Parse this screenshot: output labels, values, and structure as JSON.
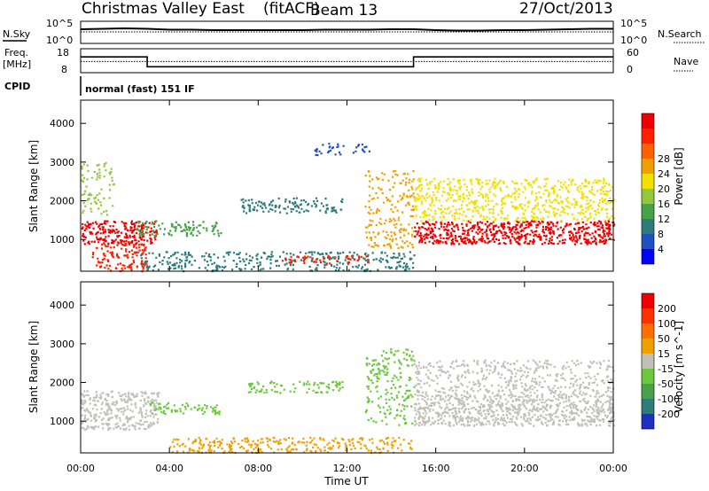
{
  "header": {
    "station": "Christmas Valley East",
    "method": "(fitACF)",
    "beam": "Beam 13",
    "date": "27/Oct/2013"
  },
  "top_panels": {
    "nsky_label": "N.Sky",
    "nsearch_label": "N.Search",
    "freq_label_1": "Freq.",
    "freq_label_2": "[MHz]",
    "nave_label": "Nave",
    "cpid_label": "CPID",
    "cpid_value": "normal (fast) 151 IF",
    "noise_ticks": [
      "10^5",
      "10^0"
    ],
    "freq_ticks": [
      "18",
      "8"
    ],
    "nave_ticks": [
      "60",
      "0"
    ],
    "noise_sky": {
      "x": [
        0,
        1,
        2,
        3,
        4,
        5,
        6,
        7,
        8,
        9,
        10,
        11,
        12,
        13,
        14,
        15,
        16,
        17,
        18,
        19,
        20,
        21,
        22,
        23,
        24
      ],
      "level": [
        3.2,
        3.3,
        3.4,
        3.3,
        3.1,
        3.1,
        3.0,
        3.0,
        3.0,
        3.0,
        3.0,
        3.1,
        3.1,
        3.1,
        3.2,
        3.2,
        3.0,
        2.9,
        2.9,
        3.0,
        3.0,
        3.1,
        3.2,
        3.3,
        3.3
      ]
    },
    "noise_search": {
      "x": [
        0,
        24
      ],
      "level": [
        2.6,
        2.6
      ]
    },
    "frequency": {
      "x": [
        0,
        3,
        3,
        15,
        15,
        24
      ],
      "mhz": [
        14.6,
        14.6,
        10.5,
        10.5,
        14.6,
        14.6
      ]
    },
    "nave": {
      "x": [
        0,
        24
      ],
      "value": [
        28,
        28
      ]
    }
  },
  "chart_data": [
    {
      "type": "heatmap",
      "name": "power",
      "ylabel": "Slant Range [km]",
      "yticks": [
        "1000",
        "2000",
        "3000",
        "4000"
      ],
      "ylim": [
        180,
        4600
      ],
      "xlim": [
        0,
        24
      ],
      "colorbar_label": "Power [dB]",
      "colorbar_ticks": [
        "4",
        "8",
        "12",
        "16",
        "20",
        "24",
        "28"
      ],
      "colorbar_colors": [
        "#0000ff",
        "#2050c0",
        "#2e7b7b",
        "#48a048",
        "#94c83c",
        "#f2e000",
        "#f0a000",
        "#ff6000",
        "#ff2000",
        "#ee0000"
      ],
      "features": [
        {
          "t": [
            0.0,
            3.4
          ],
          "r": [
            900,
            1500
          ],
          "class": 9,
          "density": 0.9
        },
        {
          "t": [
            0.5,
            3.0
          ],
          "r": [
            200,
            900
          ],
          "class": 8,
          "density": 0.6
        },
        {
          "t": [
            0.0,
            1.5
          ],
          "r": [
            1600,
            3000
          ],
          "class": 4,
          "density": 0.3
        },
        {
          "t": [
            2.5,
            6.3
          ],
          "r": [
            1100,
            1500
          ],
          "class": 3,
          "density": 0.55
        },
        {
          "t": [
            2.5,
            15.0
          ],
          "r": [
            200,
            700
          ],
          "class": 2,
          "density": 0.45
        },
        {
          "t": [
            7.2,
            11.8
          ],
          "r": [
            1700,
            2100
          ],
          "class": 2,
          "density": 0.55
        },
        {
          "t": [
            9.0,
            13.0
          ],
          "r": [
            400,
            600
          ],
          "class": 8,
          "density": 0.5
        },
        {
          "t": [
            12.8,
            15.0
          ],
          "r": [
            800,
            2800
          ],
          "class": 6,
          "density": 0.35
        },
        {
          "t": [
            15.0,
            24.0
          ],
          "r": [
            900,
            1500
          ],
          "class": 9,
          "density": 0.95
        },
        {
          "t": [
            15.0,
            24.0
          ],
          "r": [
            1500,
            2600
          ],
          "class": 5,
          "density": 0.55
        },
        {
          "t": [
            10.5,
            13.0
          ],
          "r": [
            3200,
            3500
          ],
          "class": 1,
          "density": 0.4
        }
      ]
    },
    {
      "type": "heatmap",
      "name": "velocity",
      "ylabel": "Slant Range [km]",
      "xlabel": "Time UT",
      "xticks": [
        "00:00",
        "04:00",
        "08:00",
        "12:00",
        "16:00",
        "20:00",
        "00:00"
      ],
      "yticks": [
        "1000",
        "2000",
        "3000",
        "4000"
      ],
      "ylim": [
        180,
        4600
      ],
      "xlim": [
        0,
        24
      ],
      "colorbar_label": "Velocity [m s^-1]",
      "colorbar_ticks": [
        "200",
        "100",
        "50",
        "15",
        "-15",
        "-50",
        "-100",
        "-200"
      ],
      "colorbar_colors": [
        "#2030c0",
        "#2e7b7b",
        "#48a048",
        "#6cc83c",
        "#c0c0b8",
        "#f0a000",
        "#ff7000",
        "#ff3000",
        "#ee0000"
      ],
      "features": [
        {
          "t": [
            0.0,
            3.5
          ],
          "r": [
            800,
            1800
          ],
          "class": 4,
          "density": 0.75
        },
        {
          "t": [
            2.8,
            6.3
          ],
          "r": [
            1200,
            1500
          ],
          "class": 3,
          "density": 0.5
        },
        {
          "t": [
            7.5,
            11.8
          ],
          "r": [
            1750,
            2050
          ],
          "class": 3,
          "density": 0.55
        },
        {
          "t": [
            4.0,
            15.0
          ],
          "r": [
            200,
            600
          ],
          "class": 5,
          "density": 0.55
        },
        {
          "t": [
            12.8,
            15.0
          ],
          "r": [
            900,
            2900
          ],
          "class": 3,
          "density": 0.35
        },
        {
          "t": [
            15.0,
            24.0
          ],
          "r": [
            900,
            1700
          ],
          "class": 4,
          "density": 0.9
        },
        {
          "t": [
            15.0,
            24.0
          ],
          "r": [
            1700,
            2600
          ],
          "class": 4,
          "density": 0.45
        }
      ]
    }
  ]
}
